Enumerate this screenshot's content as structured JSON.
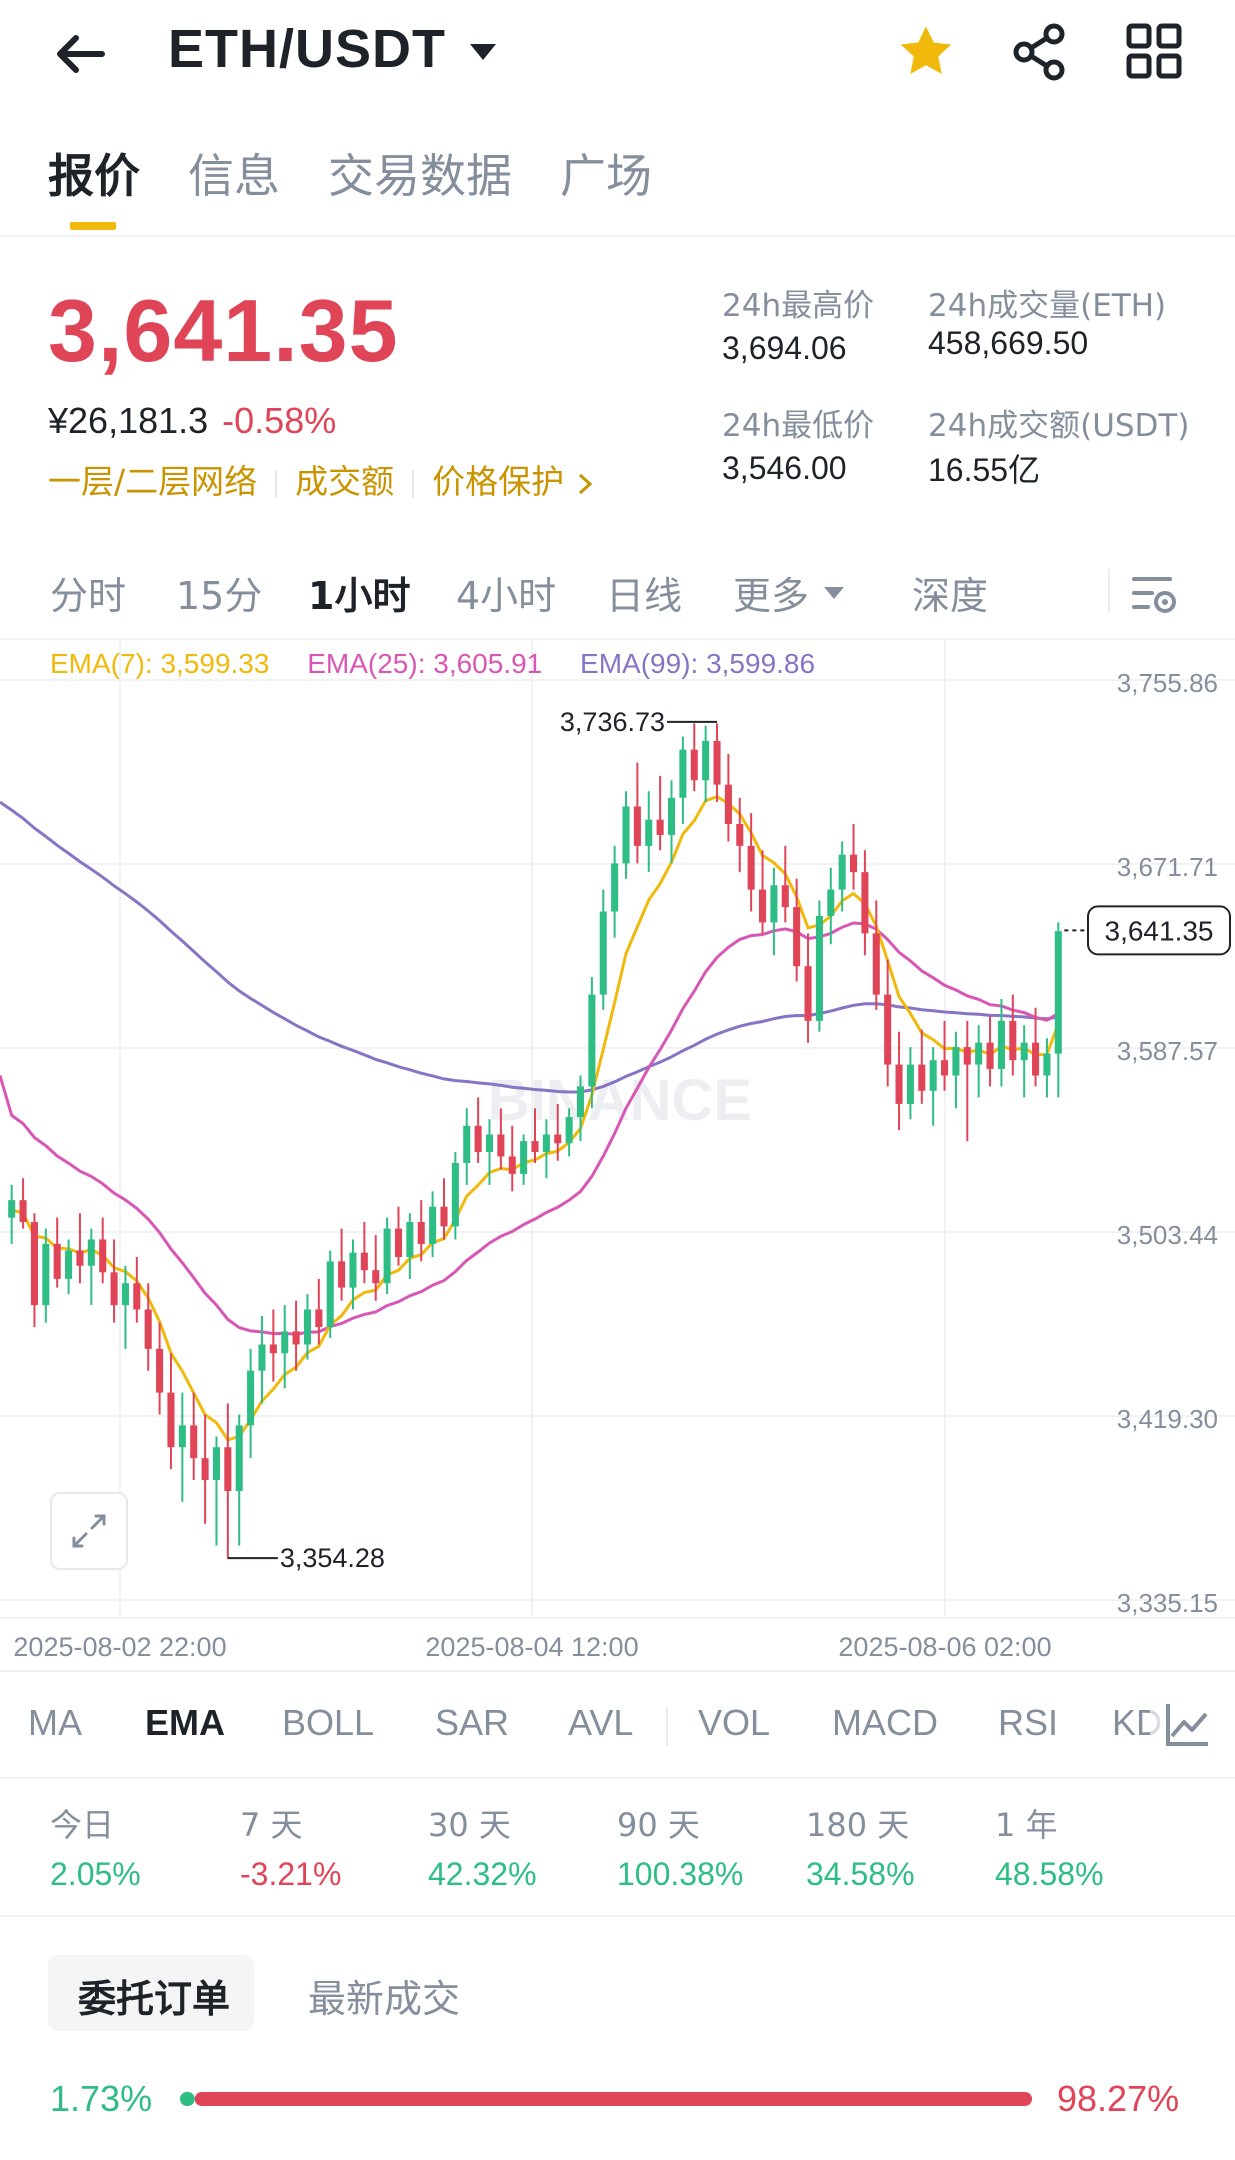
{
  "header": {
    "pair": "ETH/USDT",
    "tabs": [
      "报价",
      "信息",
      "交易数据",
      "广场"
    ]
  },
  "price": {
    "last": "3,641.35",
    "cny": "¥26,181.3",
    "change": "-0.58%",
    "tags": [
      "一层/二层网络",
      "成交额",
      "价格保护"
    ],
    "high_label": "24h最高价",
    "high": "3,694.06",
    "low_label": "24h最低价",
    "low": "3,546.00",
    "vol_label": "24h成交量(ETH)",
    "vol": "458,669.50",
    "amt_label": "24h成交额(USDT)",
    "amt": "16.55亿"
  },
  "intervals": {
    "items": [
      "分时",
      "15分",
      "1小时",
      "4小时",
      "日线",
      "更多",
      "深度"
    ]
  },
  "ema": {
    "ema7": "EMA(7): 3,599.33",
    "ema25": "EMA(25): 3,605.91",
    "ema99": "EMA(99): 3,599.86"
  },
  "colors": {
    "up": "#2ebd85",
    "down": "#e04457",
    "ema7": "#f0b90b",
    "ema25": "#d957b4",
    "ema99": "#8774c4",
    "accent": "#f0b90b"
  },
  "chart_data": {
    "type": "candlestick",
    "title": "ETH/USDT 1小时",
    "y_ticks": [
      "3,755.86",
      "3,671.71",
      "3,587.57",
      "3,503.44",
      "3,419.30",
      "3,335.15"
    ],
    "ylim": [
      3335.15,
      3755.86
    ],
    "x_ticks": [
      "2025-08-02 22:00",
      "2025-08-04 12:00",
      "2025-08-06 02:00"
    ],
    "high_marker": "3,736.73",
    "low_marker": "3,354.28",
    "current_price_label": "3,641.35",
    "watermark": "BINANCE",
    "candles": [
      [
        3510,
        3525,
        3498,
        3518
      ],
      [
        3518,
        3528,
        3505,
        3508
      ],
      [
        3508,
        3512,
        3460,
        3470
      ],
      [
        3470,
        3505,
        3462,
        3498
      ],
      [
        3498,
        3510,
        3478,
        3482
      ],
      [
        3482,
        3500,
        3475,
        3495
      ],
      [
        3495,
        3512,
        3480,
        3488
      ],
      [
        3488,
        3505,
        3470,
        3500
      ],
      [
        3500,
        3510,
        3480,
        3485
      ],
      [
        3485,
        3500,
        3462,
        3470
      ],
      [
        3470,
        3488,
        3450,
        3480
      ],
      [
        3480,
        3492,
        3462,
        3468
      ],
      [
        3468,
        3480,
        3440,
        3450
      ],
      [
        3450,
        3462,
        3420,
        3430
      ],
      [
        3430,
        3448,
        3395,
        3405
      ],
      [
        3405,
        3430,
        3380,
        3415
      ],
      [
        3415,
        3430,
        3390,
        3400
      ],
      [
        3400,
        3420,
        3370,
        3390
      ],
      [
        3390,
        3410,
        3360,
        3405
      ],
      [
        3405,
        3425,
        3354,
        3385
      ],
      [
        3385,
        3420,
        3360,
        3415
      ],
      [
        3415,
        3450,
        3400,
        3440
      ],
      [
        3440,
        3465,
        3425,
        3452
      ],
      [
        3452,
        3468,
        3435,
        3448
      ],
      [
        3448,
        3470,
        3432,
        3458
      ],
      [
        3458,
        3472,
        3440,
        3452
      ],
      [
        3452,
        3475,
        3445,
        3468
      ],
      [
        3468,
        3482,
        3452,
        3460
      ],
      [
        3460,
        3495,
        3455,
        3490
      ],
      [
        3490,
        3505,
        3472,
        3478
      ],
      [
        3478,
        3500,
        3468,
        3494
      ],
      [
        3494,
        3508,
        3480,
        3486
      ],
      [
        3486,
        3502,
        3472,
        3480
      ],
      [
        3480,
        3510,
        3475,
        3505
      ],
      [
        3505,
        3515,
        3488,
        3492
      ],
      [
        3492,
        3512,
        3482,
        3508
      ],
      [
        3508,
        3518,
        3490,
        3498
      ],
      [
        3498,
        3522,
        3492,
        3515
      ],
      [
        3515,
        3528,
        3500,
        3506
      ],
      [
        3506,
        3540,
        3500,
        3535
      ],
      [
        3535,
        3560,
        3525,
        3552
      ],
      [
        3552,
        3565,
        3535,
        3540
      ],
      [
        3540,
        3555,
        3525,
        3548
      ],
      [
        3548,
        3560,
        3532,
        3538
      ],
      [
        3538,
        3552,
        3522,
        3530
      ],
      [
        3530,
        3548,
        3525,
        3545
      ],
      [
        3545,
        3560,
        3535,
        3540
      ],
      [
        3540,
        3555,
        3528,
        3548
      ],
      [
        3548,
        3562,
        3536,
        3544
      ],
      [
        3544,
        3560,
        3538,
        3556
      ],
      [
        3556,
        3575,
        3545,
        3570
      ],
      [
        3570,
        3620,
        3560,
        3612
      ],
      [
        3612,
        3660,
        3605,
        3650
      ],
      [
        3650,
        3680,
        3638,
        3672
      ],
      [
        3672,
        3705,
        3665,
        3698
      ],
      [
        3698,
        3718,
        3672,
        3680
      ],
      [
        3680,
        3705,
        3668,
        3692
      ],
      [
        3692,
        3712,
        3678,
        3685
      ],
      [
        3685,
        3710,
        3672,
        3702
      ],
      [
        3702,
        3730,
        3690,
        3724
      ],
      [
        3724,
        3736,
        3705,
        3710
      ],
      [
        3710,
        3735,
        3700,
        3728
      ],
      [
        3728,
        3736,
        3700,
        3708
      ],
      [
        3708,
        3722,
        3682,
        3690
      ],
      [
        3690,
        3702,
        3668,
        3680
      ],
      [
        3680,
        3695,
        3650,
        3660
      ],
      [
        3660,
        3678,
        3640,
        3645
      ],
      [
        3645,
        3670,
        3630,
        3662
      ],
      [
        3662,
        3680,
        3645,
        3652
      ],
      [
        3652,
        3665,
        3618,
        3625
      ],
      [
        3625,
        3640,
        3590,
        3600
      ],
      [
        3600,
        3655,
        3595,
        3648
      ],
      [
        3648,
        3670,
        3635,
        3660
      ],
      [
        3660,
        3682,
        3650,
        3676
      ],
      [
        3676,
        3690,
        3660,
        3668
      ],
      [
        3668,
        3678,
        3630,
        3640
      ],
      [
        3640,
        3655,
        3605,
        3612
      ],
      [
        3612,
        3628,
        3570,
        3580
      ],
      [
        3580,
        3595,
        3550,
        3562
      ],
      [
        3562,
        3588,
        3555,
        3580
      ],
      [
        3580,
        3596,
        3562,
        3568
      ],
      [
        3568,
        3588,
        3552,
        3582
      ],
      [
        3582,
        3600,
        3568,
        3575
      ],
      [
        3575,
        3595,
        3560,
        3588
      ],
      [
        3588,
        3600,
        3545,
        3580
      ],
      [
        3580,
        3598,
        3565,
        3590
      ],
      [
        3590,
        3602,
        3570,
        3578
      ],
      [
        3578,
        3610,
        3570,
        3600
      ],
      [
        3600,
        3612,
        3575,
        3582
      ],
      [
        3582,
        3598,
        3565,
        3590
      ],
      [
        3590,
        3606,
        3570,
        3575
      ],
      [
        3575,
        3592,
        3565,
        3585
      ],
      [
        3585,
        3645,
        3565,
        3641
      ]
    ],
    "series": [
      {
        "name": "EMA(7)",
        "value": "3,599.33"
      },
      {
        "name": "EMA(25)",
        "value": "3,605.91"
      },
      {
        "name": "EMA(99)",
        "value": "3,599.86"
      }
    ]
  },
  "indicators": [
    "MA",
    "EMA",
    "BOLL",
    "SAR",
    "AVL",
    "VOL",
    "MACD",
    "RSI",
    "KD"
  ],
  "performance": [
    {
      "label": "今日",
      "value": "2.05%",
      "dir": "up"
    },
    {
      "label": "7 天",
      "value": "-3.21%",
      "dir": "down"
    },
    {
      "label": "30 天",
      "value": "42.32%",
      "dir": "up"
    },
    {
      "label": "90 天",
      "value": "100.38%",
      "dir": "up"
    },
    {
      "label": "180 天",
      "value": "34.58%",
      "dir": "up"
    },
    {
      "label": "1 年",
      "value": "48.58%",
      "dir": "up"
    }
  ],
  "orderbook": {
    "tab_active": "委托订单",
    "tab_other": "最新成交",
    "buy_ratio": "1.73%",
    "sell_ratio": "98.27%",
    "buy_fraction": 0.0173
  }
}
